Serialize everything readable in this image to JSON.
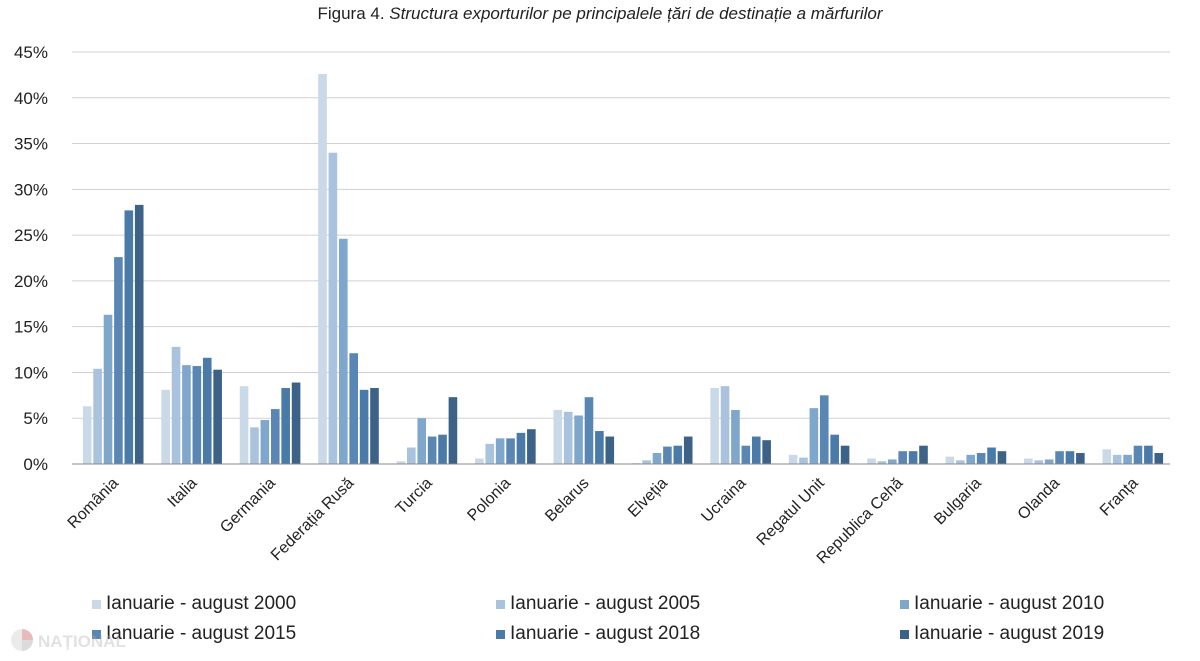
{
  "title": {
    "prefix": "Figura 4.",
    "main": "Structura exporturilor pe principalele țări de destinație a mărfurilor"
  },
  "colors": {
    "series": [
      "#c9d9e8",
      "#a9c2dd",
      "#7fa6cb",
      "#5a86b3",
      "#4a7aa8",
      "#3d6287"
    ],
    "grid": "#d0d0d0",
    "axis": "#888888"
  },
  "watermark": {
    "text": "NAȚIONAL",
    "icon": "pinwheel-logo-icon"
  },
  "chart_data": {
    "type": "bar",
    "ylim": [
      0,
      45
    ],
    "yticks": [
      "0%",
      "5%",
      "10%",
      "15%",
      "20%",
      "25%",
      "30%",
      "35%",
      "40%",
      "45%"
    ],
    "ytick_values": [
      0,
      5,
      10,
      15,
      20,
      25,
      30,
      35,
      40,
      45
    ],
    "grid": "horizontal",
    "legend_position": "bottom",
    "categories": [
      "România",
      "Italia",
      "Germania",
      "Federația Rusă",
      "Turcia",
      "Polonia",
      "Belarus",
      "Elveția",
      "Ucraina",
      "Regatul Unit",
      "Republica Cehă",
      "Bulgaria",
      "Olanda",
      "Franța"
    ],
    "series": [
      {
        "name": "Ianuarie - august  2000",
        "values": [
          6.3,
          8.1,
          8.5,
          42.6,
          0.3,
          0.6,
          5.9,
          0.1,
          8.3,
          1.0,
          0.6,
          0.8,
          0.6,
          1.6
        ]
      },
      {
        "name": "Ianuarie - august  2005",
        "values": [
          10.4,
          12.8,
          4.0,
          34.0,
          1.8,
          2.2,
          5.7,
          0.4,
          8.5,
          0.7,
          0.3,
          0.4,
          0.4,
          1.0
        ]
      },
      {
        "name": "Ianuarie - august  2010",
        "values": [
          16.3,
          10.8,
          4.8,
          24.6,
          5.0,
          2.8,
          5.3,
          1.2,
          5.9,
          6.1,
          0.5,
          1.0,
          0.5,
          1.0
        ]
      },
      {
        "name": "Ianuarie - august  2015",
        "values": [
          22.6,
          10.7,
          6.0,
          12.1,
          3.0,
          2.8,
          7.3,
          1.9,
          2.0,
          7.5,
          1.4,
          1.2,
          1.4,
          2.0
        ]
      },
      {
        "name": "Ianuarie - august  2018",
        "values": [
          27.7,
          11.6,
          8.3,
          8.1,
          3.2,
          3.4,
          3.6,
          2.0,
          3.0,
          3.2,
          1.4,
          1.8,
          1.4,
          2.0
        ]
      },
      {
        "name": "Ianuarie - august  2019",
        "values": [
          28.3,
          10.3,
          8.9,
          8.3,
          7.3,
          3.8,
          3.0,
          3.0,
          2.6,
          2.0,
          2.0,
          1.4,
          1.2,
          1.2
        ]
      }
    ]
  }
}
